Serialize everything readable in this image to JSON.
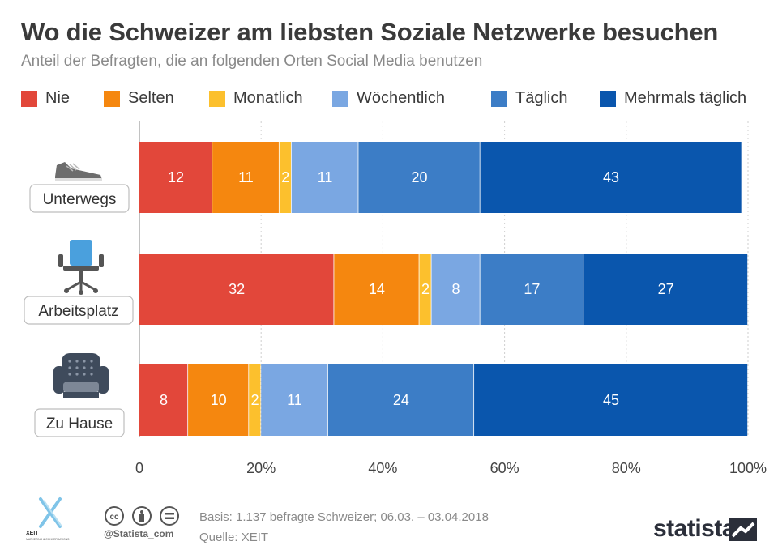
{
  "header": {
    "title": "Wo die Schweizer am liebsten Soziale Netzwerke besuchen",
    "subtitle": "Anteil der Befragten, die an folgenden Orten Social Media benutzen"
  },
  "chart_data": {
    "type": "bar",
    "orientation": "horizontal",
    "stacked": true,
    "categories": [
      "Unterwegs",
      "Arbeitsplatz",
      "Zu Hause"
    ],
    "series": [
      {
        "name": "Nie",
        "color": "#e2473a",
        "values": [
          12,
          32,
          8
        ]
      },
      {
        "name": "Selten",
        "color": "#f5870f",
        "values": [
          11,
          14,
          10
        ]
      },
      {
        "name": "Monatlich",
        "color": "#fcc02d",
        "values": [
          2,
          2,
          2
        ]
      },
      {
        "name": "Wöchentlich",
        "color": "#7aa7e2",
        "values": [
          11,
          8,
          11
        ]
      },
      {
        "name": "Täglich",
        "color": "#3c7dc6",
        "values": [
          20,
          17,
          24
        ]
      },
      {
        "name": "Mehrmals täglich",
        "color": "#0a56ad",
        "values": [
          43,
          27,
          45
        ]
      }
    ],
    "xlim": [
      0,
      100
    ],
    "xticks": [
      "0",
      "20%",
      "40%",
      "60%",
      "80%",
      "100%"
    ],
    "grid": true,
    "legend_position": "top",
    "category_icons": [
      "sneaker-icon",
      "office-chair-icon",
      "armchair-icon"
    ]
  },
  "footer": {
    "basis": "Basis: 1.137 befragte Schweizer; 06.03. – 03.04.2018",
    "source": "Quelle: XEIT",
    "handle": "@Statista_com",
    "brand": "statista",
    "partner_logo": "XEIT",
    "partner_logo_tagline": "MARKETING & CONVERSATIONS"
  }
}
